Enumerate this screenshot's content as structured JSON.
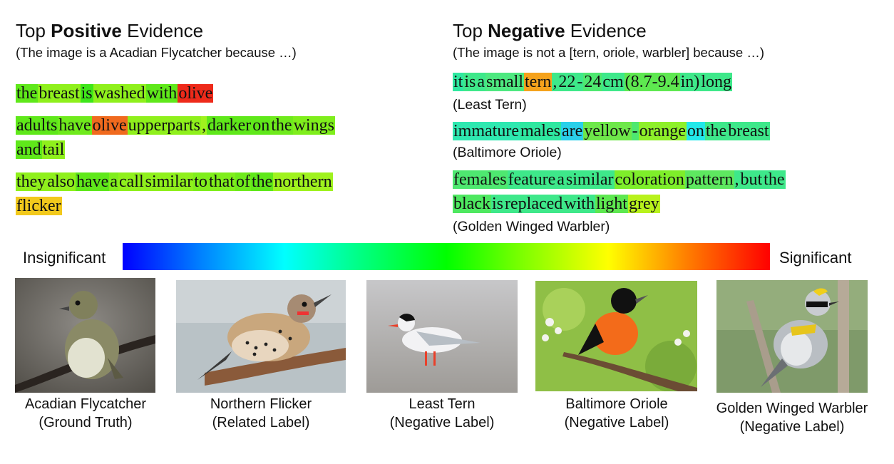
{
  "positive": {
    "title_pre": "Top ",
    "title_bold": "Positive",
    "title_post": " Evidence",
    "subtitle": "(The image is a Acadian Flycatcher because …)",
    "sentences": [
      {
        "lines": [
          [
            {
              "t": "the",
              "c": "#5fe81a"
            },
            {
              "t": "breast",
              "c": "#8ff01c"
            },
            {
              "t": "is",
              "c": "#3ee61a"
            },
            {
              "t": "washed",
              "c": "#8ff01c"
            },
            {
              "t": "with",
              "c": "#5fe81a"
            },
            {
              "t": "olive",
              "c": "#ee2a1a"
            }
          ]
        ]
      },
      {
        "lines": [
          [
            {
              "t": "adults",
              "c": "#5fe81a"
            },
            {
              "t": "have",
              "c": "#6fea1c"
            },
            {
              "t": "olive",
              "c": "#f06a1e"
            },
            {
              "t": "upperparts",
              "c": "#8ff01c"
            },
            {
              "t": ",",
              "c": "#9ff21e"
            },
            {
              "t": "darker",
              "c": "#5fe81a"
            },
            {
              "t": "on",
              "c": "#5fe81a"
            },
            {
              "t": "the",
              "c": "#6fea1c"
            },
            {
              "t": "wings",
              "c": "#7fee1c"
            }
          ],
          [
            {
              "t": "and",
              "c": "#5fe81a"
            },
            {
              "t": "tail",
              "c": "#8ff01c"
            }
          ]
        ]
      },
      {
        "lines": [
          [
            {
              "t": "they",
              "c": "#8ff01c"
            },
            {
              "t": "also",
              "c": "#8ff01c"
            },
            {
              "t": "have",
              "c": "#5fe81a"
            },
            {
              "t": "a",
              "c": "#7fee1c"
            },
            {
              "t": "call",
              "c": "#8ff01c"
            },
            {
              "t": "similar",
              "c": "#8ff01c"
            },
            {
              "t": "to",
              "c": "#7fee1c"
            },
            {
              "t": "that",
              "c": "#7fee1c"
            },
            {
              "t": "of",
              "c": "#6fea1c"
            },
            {
              "t": "the",
              "c": "#5fe81a"
            },
            {
              "t": "northern",
              "c": "#9ff21e"
            }
          ],
          [
            {
              "t": "flicker",
              "c": "#f2c91c"
            }
          ]
        ]
      }
    ]
  },
  "negative": {
    "title_pre": "Top ",
    "title_bold": "Negative",
    "title_post": " Evidence",
    "subtitle": "(The image is not a [tern, oriole, warbler] because …)",
    "sentences": [
      {
        "lines": [
          [
            {
              "t": "it",
              "c": "#2ee8a0"
            },
            {
              "t": "is",
              "c": "#3ee88a"
            },
            {
              "t": "a",
              "c": "#3ee88a"
            },
            {
              "t": "small",
              "c": "#4ee880"
            },
            {
              "t": "tern",
              "c": "#f5a21c"
            },
            {
              "t": ",",
              "c": "#3ee88a"
            },
            {
              "t": "22",
              "c": "#3ee88a"
            },
            {
              "t": "-",
              "c": "#3ee88a"
            },
            {
              "t": "24",
              "c": "#4ee870"
            },
            {
              "t": "cm",
              "c": "#3ee88a"
            },
            {
              "t": "(8.7-9.4",
              "c": "#5ee850"
            },
            {
              "t": "in)",
              "c": "#3ee88a"
            },
            {
              "t": "long",
              "c": "#3ee88a"
            }
          ]
        ],
        "source": "(Least Tern)"
      },
      {
        "lines": [
          [
            {
              "t": "immature",
              "c": "#2ee8b0"
            },
            {
              "t": "males",
              "c": "#2ee8a0"
            },
            {
              "t": "are",
              "c": "#2ad0ea"
            },
            {
              "t": "yellow",
              "c": "#6ee84a"
            },
            {
              "t": "-",
              "c": "#4ee870"
            },
            {
              "t": "orange",
              "c": "#8ef02a"
            },
            {
              "t": "on",
              "c": "#22e8ea"
            },
            {
              "t": "the",
              "c": "#3ee88a"
            },
            {
              "t": "breast",
              "c": "#3ee88a"
            }
          ]
        ],
        "source": "(Baltimore Oriole)"
      },
      {
        "lines": [
          [
            {
              "t": "females",
              "c": "#4ee870"
            },
            {
              "t": "feature",
              "c": "#3ee88a"
            },
            {
              "t": "a",
              "c": "#3ee88a"
            },
            {
              "t": "similar",
              "c": "#3ee88a"
            },
            {
              "t": "coloration",
              "c": "#7eee2a"
            },
            {
              "t": "pattern",
              "c": "#5ee860"
            },
            {
              "t": ",",
              "c": "#3ee88a"
            },
            {
              "t": "but",
              "c": "#3ee88a"
            },
            {
              "t": "the",
              "c": "#3ee88a"
            }
          ],
          [
            {
              "t": "black",
              "c": "#4ee860"
            },
            {
              "t": "is",
              "c": "#3ee88a"
            },
            {
              "t": "replaced",
              "c": "#3ee88a"
            },
            {
              "t": "with",
              "c": "#3ee88a"
            },
            {
              "t": "light",
              "c": "#5ee850"
            },
            {
              "t": "grey",
              "c": "#b8f21c"
            }
          ]
        ],
        "source": "(Golden Winged Warbler)"
      }
    ]
  },
  "colorbar": {
    "left_label": "Insignificant",
    "right_label": "Significant"
  },
  "birds": [
    {
      "name": "Acadian Flycatcher",
      "role": "(Ground Truth)",
      "icon": "acadian-flycatcher-photo"
    },
    {
      "name": "Northern Flicker",
      "role": "(Related Label)",
      "icon": "northern-flicker-photo"
    },
    {
      "name": "Least Tern",
      "role": "(Negative Label)",
      "icon": "least-tern-photo"
    },
    {
      "name": "Baltimore Oriole",
      "role": "(Negative Label)",
      "icon": "baltimore-oriole-photo"
    },
    {
      "name": "Golden Winged Warbler",
      "role": "(Negative Label)",
      "icon": "golden-winged-warbler-photo"
    }
  ]
}
